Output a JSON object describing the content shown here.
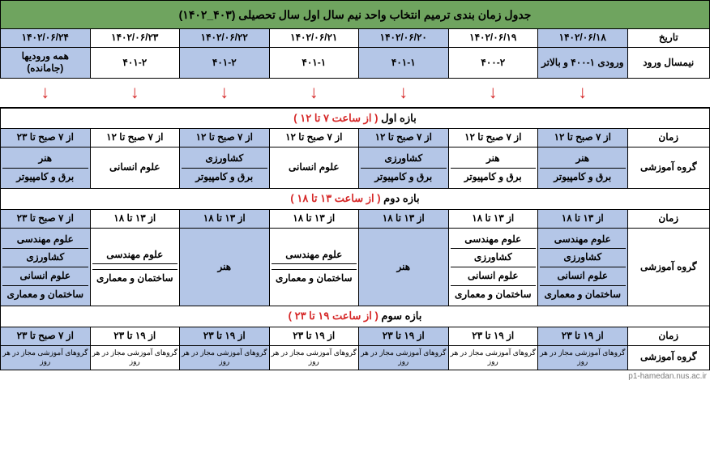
{
  "title": "جدول زمان بندی ترمیم انتخاب واحد نیم سال اول سال تحصیلی (۴۰۳_۱۴۰۲)",
  "header": {
    "date_label": "تاریخ",
    "entry_label": "نیمسال ورود",
    "dates": [
      "۱۴۰۲/۰۶/۱۸",
      "۱۴۰۲/۰۶/۱۹",
      "۱۴۰۲/۰۶/۲۰",
      "۱۴۰۲/۰۶/۲۱",
      "۱۴۰۲/۰۶/۲۲",
      "۱۴۰۲/۰۶/۲۳",
      "۱۴۰۲/۰۶/۲۴"
    ],
    "entries": [
      "ورودی ۱-۴۰۰ و بالاتر",
      "۴۰۰-۲",
      "۴۰۱-۱",
      "۴۰۱-۱",
      "۴۰۱-۲",
      "۴۰۱-۲",
      "همه ورودیها (جامانده)"
    ]
  },
  "range1": {
    "title_black": "بازه اول",
    "title_red": "( از ساعت ۷ تا ۱۲ )",
    "time_label": "زمان",
    "group_label": "گروه آموزشی",
    "times": [
      "از ۷ صبح تا ۱۲",
      "از ۷ صبح تا ۱۲",
      "از ۷ صبح تا ۱۲",
      "از ۷ صبح تا ۱۲",
      "از ۷ صبح تا ۱۲",
      "از ۷ صبح تا ۱۲",
      "از ۷ صبح تا ۲۳"
    ],
    "groups": {
      "c0": [
        "هنر",
        "برق و کامپیوتر"
      ],
      "c1": [
        "هنر",
        "برق و کامپیوتر"
      ],
      "c2": [
        "کشاورزی",
        "برق و کامپیوتر"
      ],
      "c3": "علوم انسانی",
      "c4": [
        "کشاورزی",
        "برق و کامپیوتر"
      ],
      "c5": "علوم انسانی",
      "c6": [
        "هنر",
        "برق و کامپیوتر"
      ]
    }
  },
  "range2": {
    "title_black": "بازه دوم",
    "title_red": "( از ساعت ۱۳ تا ۱۸ )",
    "time_label": "زمان",
    "group_label": "گروه آموزشی",
    "times": [
      "از ۱۳ تا ۱۸",
      "از ۱۳ تا ۱۸",
      "از ۱۳ تا ۱۸",
      "از ۱۳ تا ۱۸",
      "از ۱۳ تا ۱۸",
      "از ۱۳ تا ۱۸",
      "از ۷ صبح تا ۲۳"
    ],
    "groups": {
      "c0": [
        "علوم مهندسی",
        "کشاورزی",
        "علوم انسانی",
        "ساختمان و معماری"
      ],
      "c1": [
        "علوم مهندسی",
        "کشاورزی",
        "علوم انسانی",
        "ساختمان و معماری"
      ],
      "c2": "هنر",
      "c3": [
        "علوم مهندسی",
        "",
        "ساختمان و معماری"
      ],
      "c4": "هنر",
      "c5": [
        "علوم مهندسی",
        "",
        "ساختمان و معماری"
      ],
      "c6": [
        "علوم مهندسی",
        "کشاورزی",
        "علوم انسانی",
        "ساختمان و معماری"
      ]
    }
  },
  "range3": {
    "title_black": "بازه سوم",
    "title_red": "( از ساعت ۱۹ تا ۲۳ )",
    "time_label": "زمان",
    "group_label": "گروه آموزشی",
    "times": [
      "از ۱۹ تا ۲۳",
      "از ۱۹ تا ۲۳",
      "از ۱۹ تا ۲۳",
      "از ۱۹ تا ۲۳",
      "از ۱۹ تا ۲۳",
      "از ۱۹ تا ۲۳",
      "از ۷ صبح تا ۲۳"
    ],
    "group_text": "گروهای آموزشی مجاز در هر روز"
  },
  "footer": "p1-hamedan.nus.ac.ir",
  "style": {
    "blue": "#b4c6e7",
    "green": "#6fa45f",
    "red": "#d62828"
  }
}
